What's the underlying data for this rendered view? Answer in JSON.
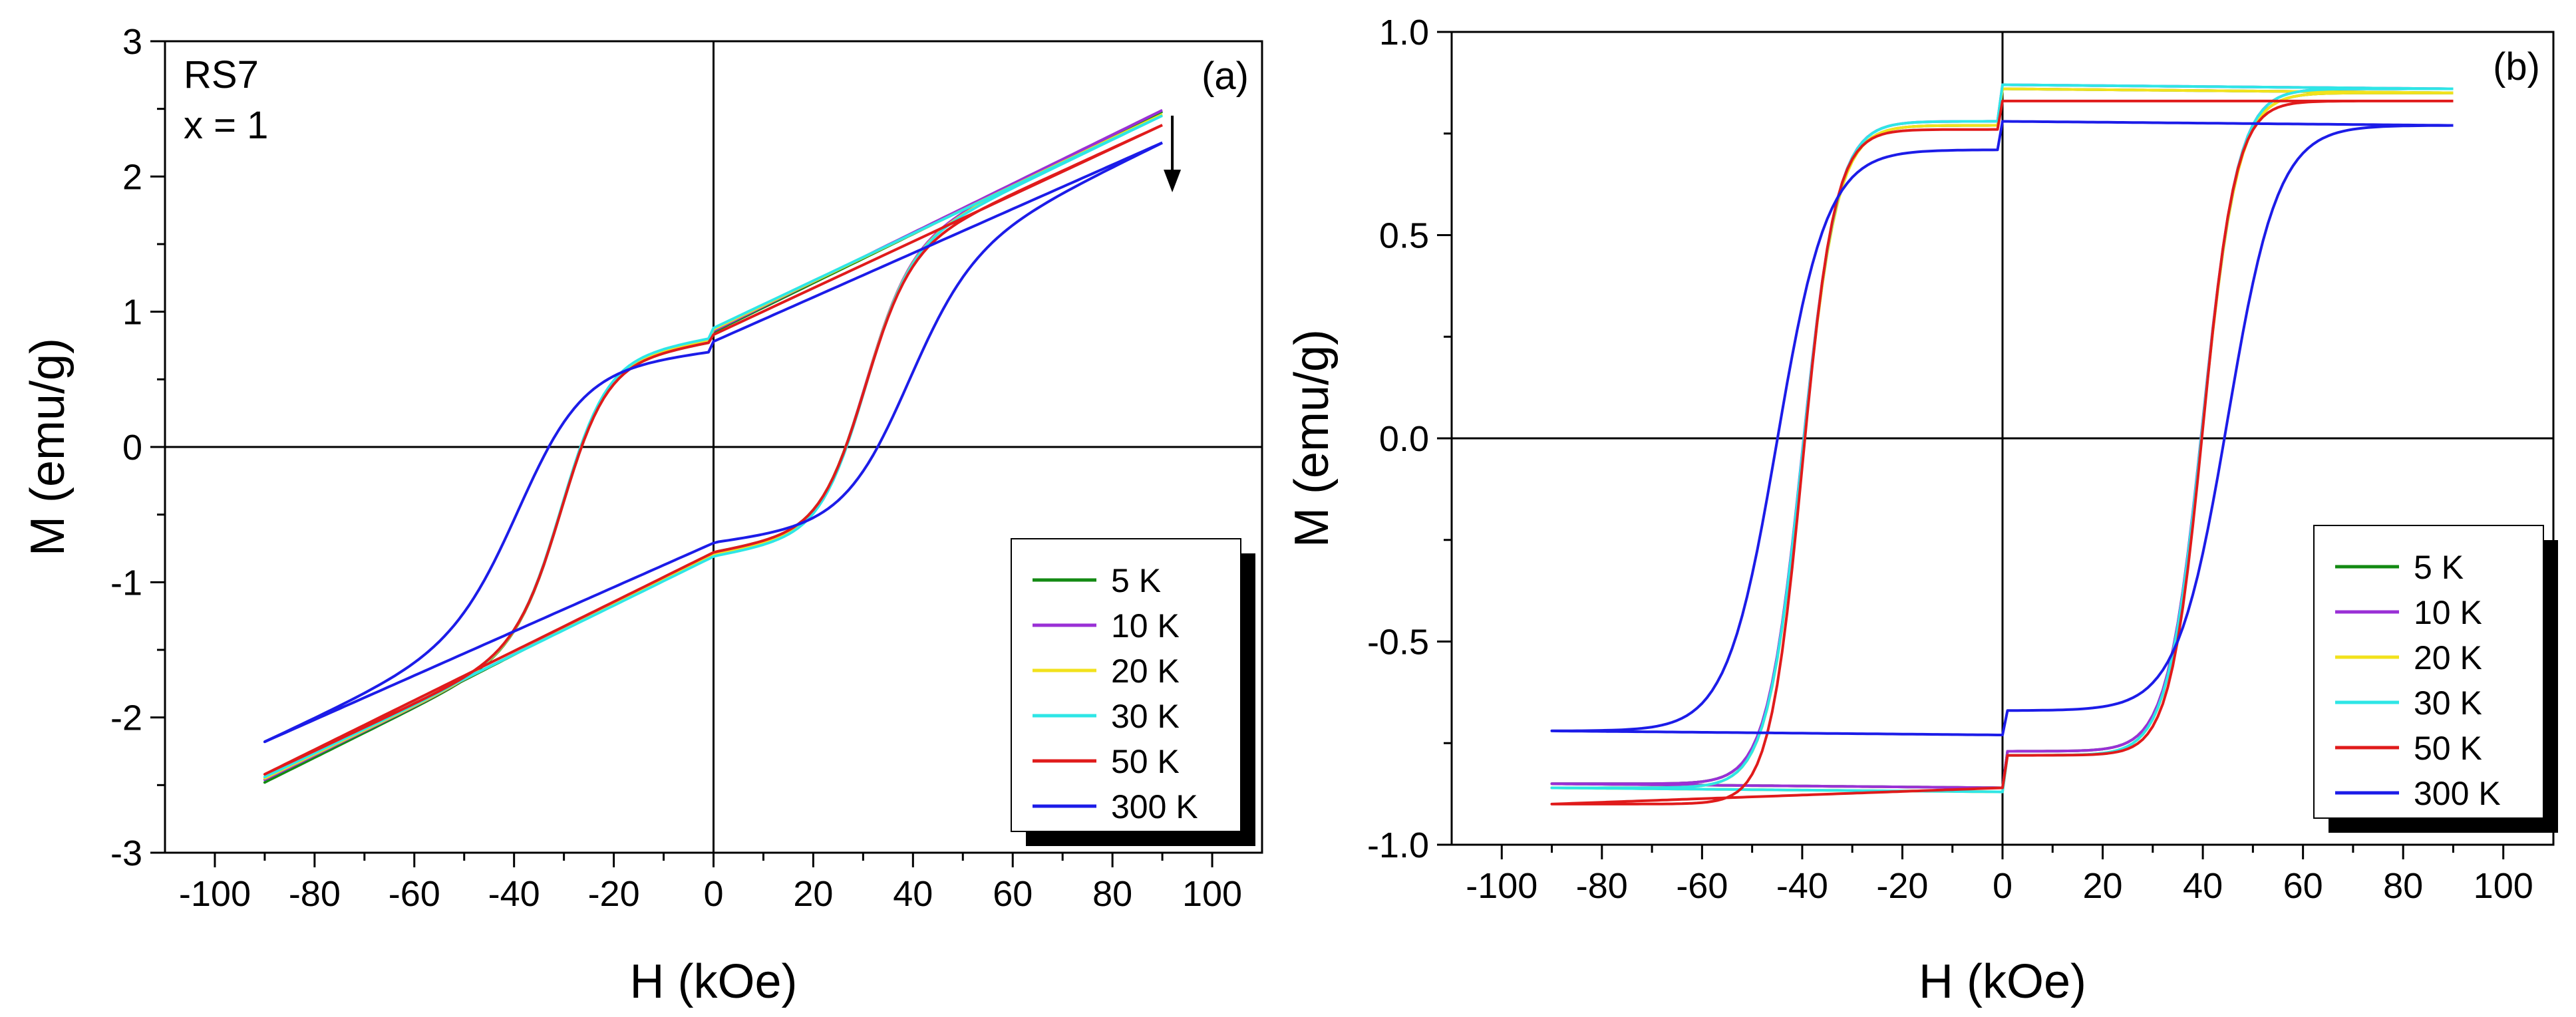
{
  "chart_data": [
    {
      "panel": "(a)",
      "type": "line",
      "sample": "RS7",
      "composition": "x = 1",
      "xlabel": "H (kOe)",
      "ylabel": "M (emu/g)",
      "xlim": [
        -110,
        110
      ],
      "ylim": [
        -3,
        3
      ],
      "xticks": [
        -100,
        -80,
        -60,
        -40,
        -20,
        0,
        20,
        40,
        60,
        80,
        100
      ],
      "yticks": [
        -3,
        -2,
        -1,
        0,
        1,
        2,
        3
      ],
      "arrow_note": "downward arrow near H = 92 kOe indicating M decreases with increasing temperature",
      "series": [
        {
          "name": "5 K",
          "color": "#138a13",
          "mhigh": 2.48,
          "mlow": -2.48,
          "x0": 0.78,
          "xm": 0.85,
          "hc": 30,
          "w": 9,
          "sb": -0.83,
          "ss": 1.1
        },
        {
          "name": "10 K",
          "color": "#9a30d6",
          "mhigh": 2.49,
          "mlow": -2.46,
          "x0": 0.79,
          "xm": 0.86,
          "hc": 30,
          "w": 9,
          "sb": -0.84,
          "ss": 1.1
        },
        {
          "name": "20 K",
          "color": "#f2e21c",
          "mhigh": 2.46,
          "mlow": -2.45,
          "x0": 0.8,
          "xm": 0.87,
          "hc": 30,
          "w": 9,
          "sb": -0.85,
          "ss": 1.1
        },
        {
          "name": "30 K",
          "color": "#2ee6e6",
          "mhigh": 2.45,
          "mlow": -2.44,
          "x0": 0.81,
          "xm": 0.88,
          "hc": 30,
          "w": 9,
          "sb": -0.85,
          "ss": 1.1
        },
        {
          "name": "50 K",
          "color": "#e01b1b",
          "mhigh": 2.38,
          "mlow": -2.42,
          "x0": 0.78,
          "xm": 0.83,
          "hc": 30,
          "w": 9,
          "sb": -0.86,
          "ss": 1.1
        },
        {
          "name": "300 K",
          "color": "#1c1ce8",
          "mhigh": 2.25,
          "mlow": -2.18,
          "x0": 0.71,
          "xm": 0.78,
          "hc": 38,
          "w": 13,
          "sb": -0.63,
          "ss": 0.75
        }
      ]
    },
    {
      "panel": "(b)",
      "type": "line",
      "xlabel": "H (kOe)",
      "ylabel": "M (emu/g)",
      "xlim": [
        -110,
        110
      ],
      "ylim": [
        -1.0,
        1.0
      ],
      "xticks": [
        -100,
        -80,
        -60,
        -40,
        -20,
        0,
        20,
        40,
        60,
        80,
        100
      ],
      "yticks": [
        -1.0,
        -0.5,
        0.0,
        0.5,
        1.0
      ],
      "series": [
        {
          "name": "5 K",
          "color": "#138a13",
          "mend": -0.85,
          "mpre": -0.86,
          "mlb": -0.77,
          "mub": 0.77,
          "mzero": 0.86,
          "mtop": 0.85,
          "hc": 40,
          "w": 7
        },
        {
          "name": "10 K",
          "color": "#9a30d6",
          "mend": -0.85,
          "mpre": -0.86,
          "mlb": -0.77,
          "mub": 0.78,
          "mzero": 0.87,
          "mtop": 0.86,
          "hc": 40,
          "w": 7
        },
        {
          "name": "20 K",
          "color": "#f2e21c",
          "mend": -0.86,
          "mpre": -0.87,
          "mlb": -0.78,
          "mub": 0.77,
          "mzero": 0.86,
          "mtop": 0.85,
          "hc": 40,
          "w": 7
        },
        {
          "name": "30 K",
          "color": "#2ee6e6",
          "mend": -0.86,
          "mpre": -0.87,
          "mlb": -0.78,
          "mub": 0.78,
          "mzero": 0.87,
          "mtop": 0.86,
          "hc": 40,
          "w": 7
        },
        {
          "name": "50 K",
          "color": "#e01b1b",
          "mend": -0.9,
          "mpre": -0.86,
          "mlb": -0.78,
          "mub": 0.76,
          "mzero": 0.83,
          "mtop": 0.83,
          "hc": 40,
          "w": 6.5
        },
        {
          "name": "300 K",
          "color": "#1c1ce8",
          "mend": -0.72,
          "mpre": -0.73,
          "mlb": -0.67,
          "mub": 0.71,
          "mzero": 0.78,
          "mtop": 0.77,
          "hc": 45,
          "w": 10
        }
      ]
    }
  ]
}
